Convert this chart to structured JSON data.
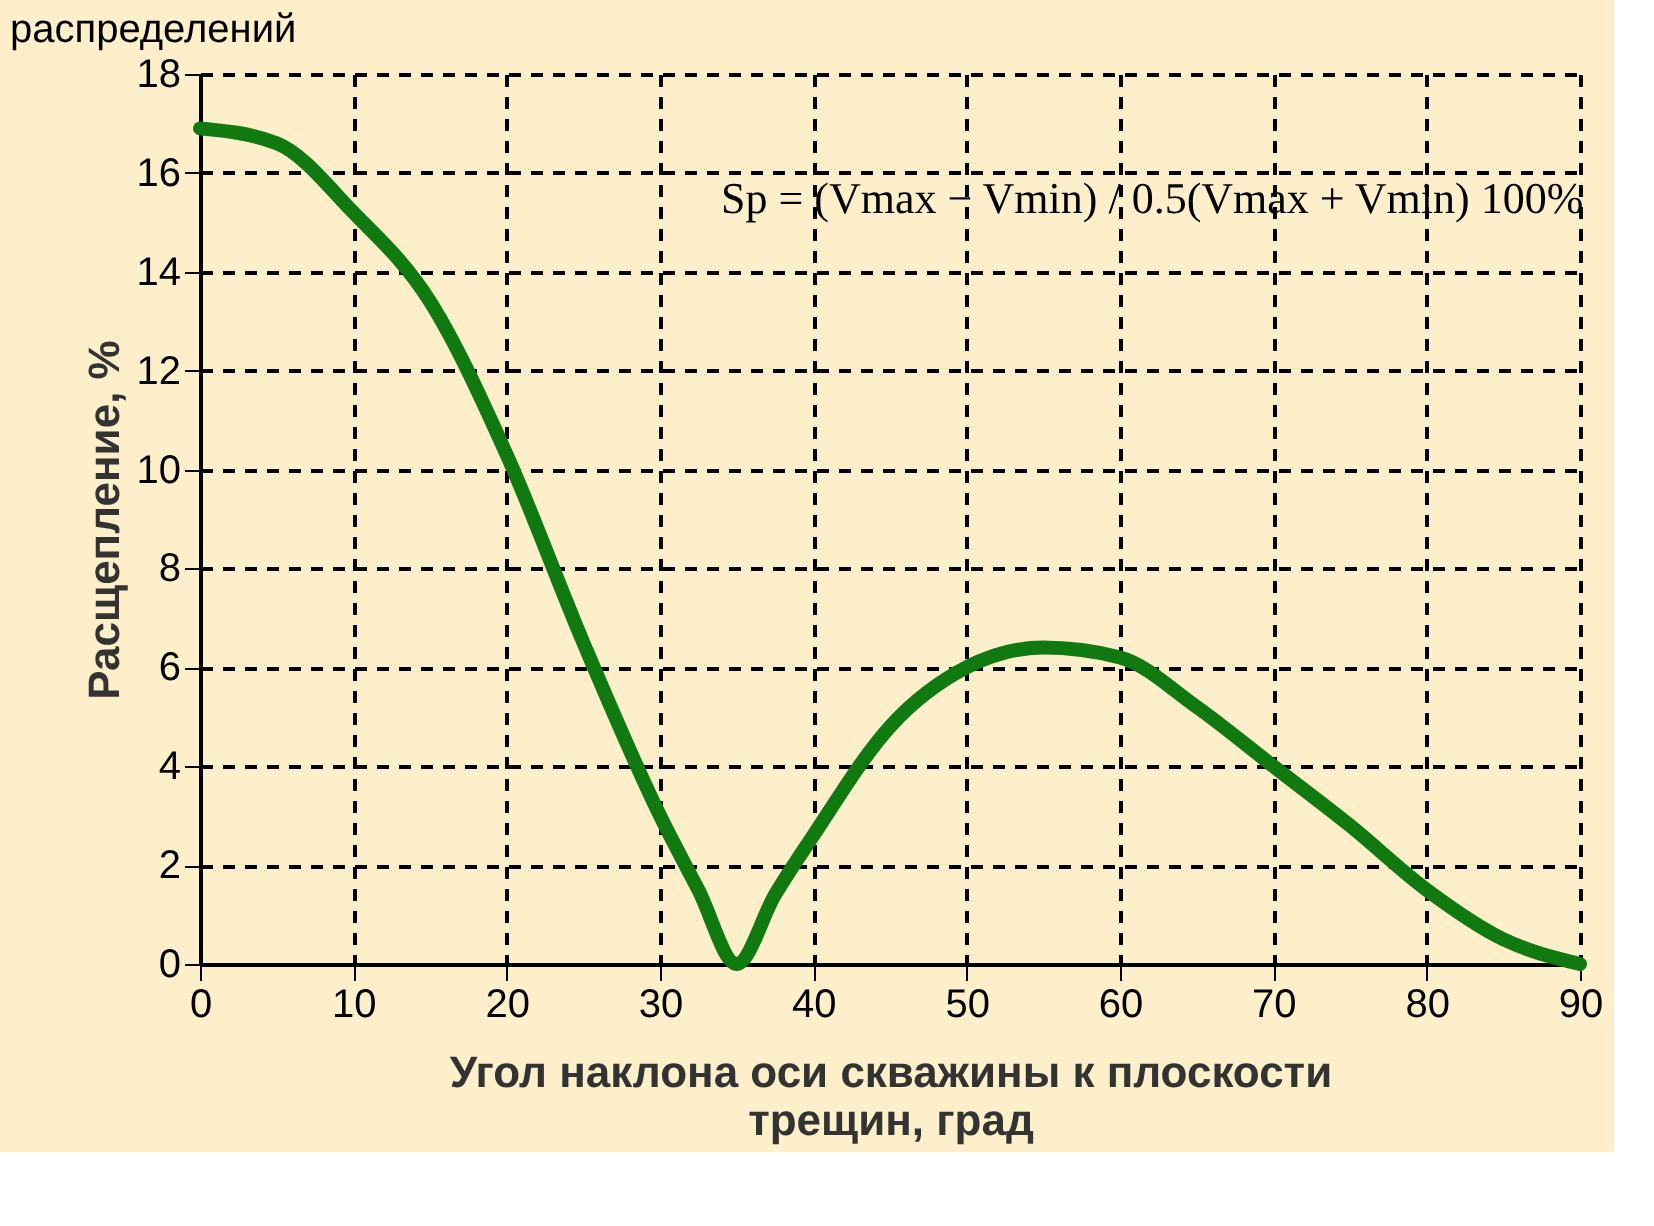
{
  "chart_data": {
    "type": "line",
    "title": "распределений",
    "xlabel": "Угол наклона оси скважины к плоскости трещин, град",
    "ylabel": "Расщепление, %",
    "annotations": [
      "Sp = (Vmax − Vmin) / 0.5(Vmax + Vmin) 100%"
    ],
    "x": [
      0,
      5,
      10,
      15,
      20,
      25,
      30,
      32.5,
      35,
      37.5,
      40,
      45,
      50,
      55,
      60,
      65,
      70,
      75,
      80,
      85,
      90
    ],
    "series": [
      {
        "color": "#107a10",
        "values": [
          16.9,
          16.6,
          15.2,
          13.4,
          10.3,
          6.5,
          3.0,
          1.5,
          0,
          1.4,
          2.6,
          4.8,
          6.0,
          6.4,
          6.2,
          5.2,
          4.0,
          2.8,
          1.5,
          0.5,
          0
        ]
      }
    ],
    "xlim": [
      0,
      90
    ],
    "xticks": [
      0,
      10,
      20,
      30,
      40,
      50,
      60,
      70,
      80,
      90
    ],
    "ylim": [
      0,
      18
    ],
    "yticks": [
      0,
      2,
      4,
      6,
      8,
      10,
      12,
      14,
      16,
      18
    ],
    "grid": true,
    "line_style": "solid",
    "marker": "none"
  }
}
